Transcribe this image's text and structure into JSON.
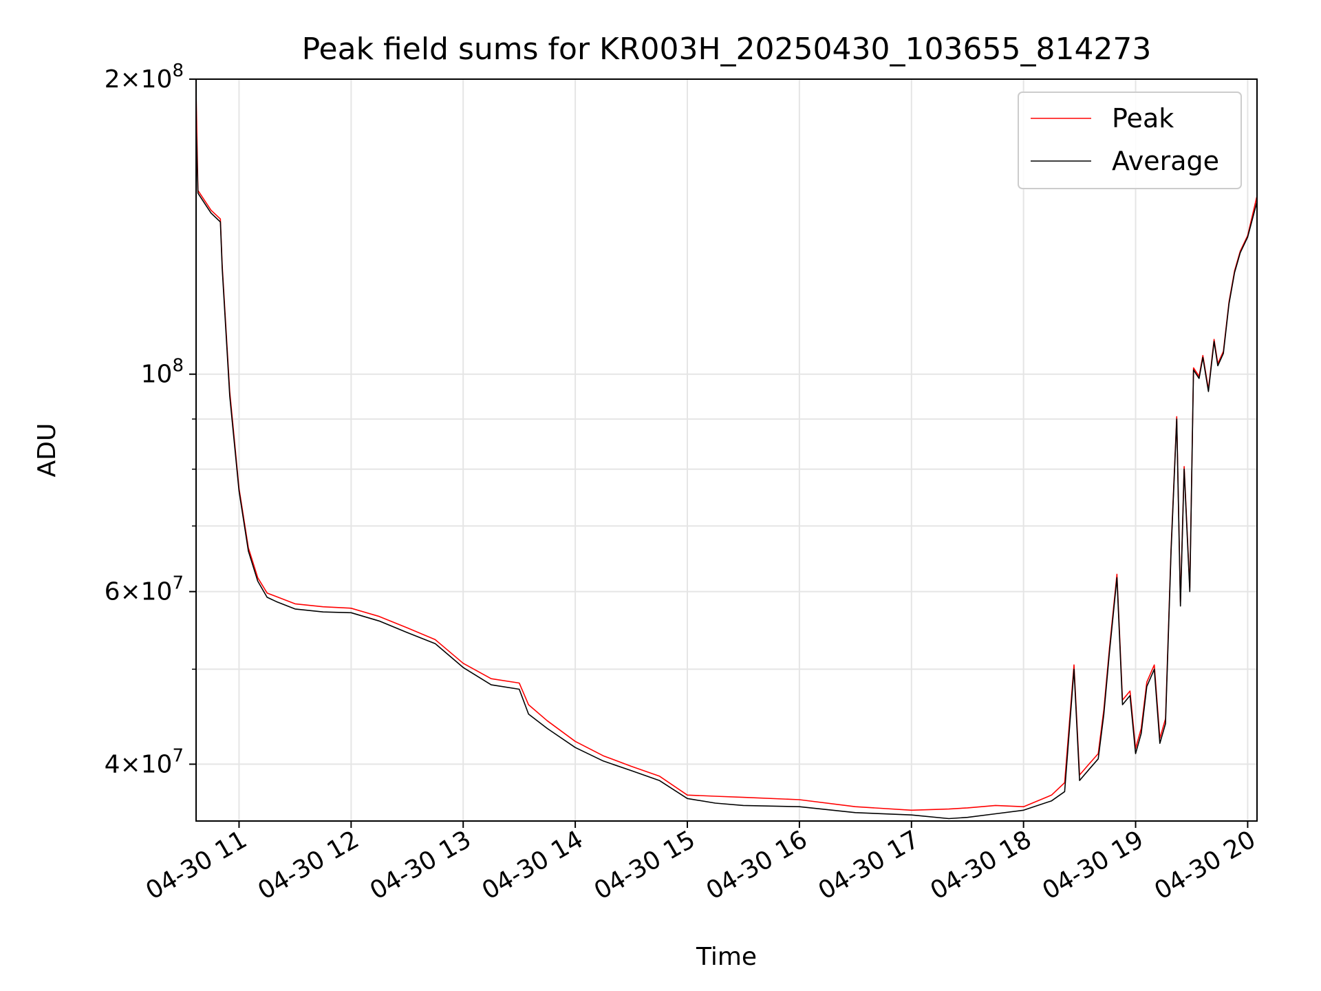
{
  "chart_data": {
    "type": "line",
    "title": "Peak field sums for KR003H_20250430_103655_814273",
    "xlabel": "Time",
    "ylabel": "ADU",
    "yscale": "log",
    "ylim": [
      35000000,
      200000000
    ],
    "xlim": [
      "2025-04-30T10:37",
      "2025-04-30T20:05"
    ],
    "grid": true,
    "legend_position": "upper right",
    "x_ticks": [
      {
        "t": "2025-04-30T11:00",
        "label": "04-30 11"
      },
      {
        "t": "2025-04-30T12:00",
        "label": "04-30 12"
      },
      {
        "t": "2025-04-30T13:00",
        "label": "04-30 13"
      },
      {
        "t": "2025-04-30T14:00",
        "label": "04-30 14"
      },
      {
        "t": "2025-04-30T15:00",
        "label": "04-30 15"
      },
      {
        "t": "2025-04-30T16:00",
        "label": "04-30 16"
      },
      {
        "t": "2025-04-30T17:00",
        "label": "04-30 17"
      },
      {
        "t": "2025-04-30T18:00",
        "label": "04-30 18"
      },
      {
        "t": "2025-04-30T19:00",
        "label": "04-30 19"
      },
      {
        "t": "2025-04-30T20:00",
        "label": "04-30 20"
      }
    ],
    "y_ticks": [
      {
        "v": 200000000,
        "mant": "2",
        "exp": "8"
      },
      {
        "v": 100000000,
        "mant": "",
        "exp": "8"
      },
      {
        "v": 60000000,
        "mant": "6",
        "exp": "7"
      },
      {
        "v": 40000000,
        "mant": "4",
        "exp": "7"
      }
    ],
    "y_minor_ticks": [
      50000000,
      70000000,
      80000000,
      90000000
    ],
    "series": [
      {
        "name": "Average",
        "color": "#000000",
        "x": [
          "2025-04-30T10:37",
          "2025-04-30T10:38",
          "2025-04-30T10:45",
          "2025-04-30T10:50",
          "2025-04-30T10:51",
          "2025-04-30T10:55",
          "2025-04-30T11:00",
          "2025-04-30T11:05",
          "2025-04-30T11:10",
          "2025-04-30T11:15",
          "2025-04-30T11:20",
          "2025-04-30T11:30",
          "2025-04-30T11:45",
          "2025-04-30T12:00",
          "2025-04-30T12:15",
          "2025-04-30T12:30",
          "2025-04-30T12:45",
          "2025-04-30T13:00",
          "2025-04-30T13:15",
          "2025-04-30T13:30",
          "2025-04-30T13:35",
          "2025-04-30T13:45",
          "2025-04-30T14:00",
          "2025-04-30T14:15",
          "2025-04-30T14:30",
          "2025-04-30T14:45",
          "2025-04-30T15:00",
          "2025-04-30T15:15",
          "2025-04-30T15:30",
          "2025-04-30T16:00",
          "2025-04-30T16:30",
          "2025-04-30T17:00",
          "2025-04-30T17:20",
          "2025-04-30T17:30",
          "2025-04-30T17:45",
          "2025-04-30T18:00",
          "2025-04-30T18:15",
          "2025-04-30T18:22",
          "2025-04-30T18:27",
          "2025-04-30T18:30",
          "2025-04-30T18:35",
          "2025-04-30T18:40",
          "2025-04-30T18:43",
          "2025-04-30T18:46",
          "2025-04-30T18:50",
          "2025-04-30T18:53",
          "2025-04-30T18:57",
          "2025-04-30T19:00",
          "2025-04-30T19:03",
          "2025-04-30T19:06",
          "2025-04-30T19:10",
          "2025-04-30T19:13",
          "2025-04-30T19:16",
          "2025-04-30T19:19",
          "2025-04-30T19:22",
          "2025-04-30T19:24",
          "2025-04-30T19:26",
          "2025-04-30T19:29",
          "2025-04-30T19:31",
          "2025-04-30T19:34",
          "2025-04-30T19:36",
          "2025-04-30T19:39",
          "2025-04-30T19:42",
          "2025-04-30T19:44",
          "2025-04-30T19:47",
          "2025-04-30T19:50",
          "2025-04-30T19:53",
          "2025-04-30T19:56",
          "2025-04-30T20:00",
          "2025-04-30T20:05"
        ],
        "values": [
          180000000,
          153000000,
          146000000,
          143000000,
          128000000,
          95000000,
          76000000,
          66000000,
          61500000,
          59200000,
          58600000,
          57600000,
          57200000,
          57100000,
          56000000,
          54500000,
          53100000,
          50200000,
          48200000,
          47700000,
          45000000,
          43500000,
          41600000,
          40300000,
          39400000,
          38500000,
          36900000,
          36500000,
          36300000,
          36200000,
          35700000,
          35500000,
          35200000,
          35300000,
          35600000,
          35900000,
          36700000,
          37500000,
          50000000,
          38500000,
          39500000,
          40500000,
          45000000,
          52000000,
          62000000,
          46000000,
          47000000,
          41000000,
          43000000,
          48000000,
          50000000,
          42000000,
          44000000,
          66000000,
          90000000,
          58000000,
          80000000,
          60000000,
          101000000,
          99000000,
          104000000,
          96000000,
          108000000,
          102000000,
          105000000,
          118000000,
          127000000,
          133000000,
          138000000,
          150000000
        ]
      },
      {
        "name": "Peak",
        "color": "#ff0000",
        "x": [
          "2025-04-30T10:37",
          "2025-04-30T10:38",
          "2025-04-30T10:45",
          "2025-04-30T10:50",
          "2025-04-30T10:51",
          "2025-04-30T10:55",
          "2025-04-30T11:00",
          "2025-04-30T11:05",
          "2025-04-30T11:10",
          "2025-04-30T11:15",
          "2025-04-30T11:20",
          "2025-04-30T11:30",
          "2025-04-30T11:45",
          "2025-04-30T12:00",
          "2025-04-30T12:15",
          "2025-04-30T12:30",
          "2025-04-30T12:45",
          "2025-04-30T13:00",
          "2025-04-30T13:15",
          "2025-04-30T13:30",
          "2025-04-30T13:35",
          "2025-04-30T13:45",
          "2025-04-30T14:00",
          "2025-04-30T14:15",
          "2025-04-30T14:30",
          "2025-04-30T14:45",
          "2025-04-30T15:00",
          "2025-04-30T15:15",
          "2025-04-30T15:30",
          "2025-04-30T16:00",
          "2025-04-30T16:30",
          "2025-04-30T17:00",
          "2025-04-30T17:20",
          "2025-04-30T17:30",
          "2025-04-30T17:45",
          "2025-04-30T18:00",
          "2025-04-30T18:15",
          "2025-04-30T18:22",
          "2025-04-30T18:27",
          "2025-04-30T18:30",
          "2025-04-30T18:35",
          "2025-04-30T18:40",
          "2025-04-30T18:43",
          "2025-04-30T18:46",
          "2025-04-30T18:50",
          "2025-04-30T18:53",
          "2025-04-30T18:57",
          "2025-04-30T19:00",
          "2025-04-30T19:03",
          "2025-04-30T19:06",
          "2025-04-30T19:10",
          "2025-04-30T19:13",
          "2025-04-30T19:16",
          "2025-04-30T19:19",
          "2025-04-30T19:22",
          "2025-04-30T19:24",
          "2025-04-30T19:26",
          "2025-04-30T19:29",
          "2025-04-30T19:31",
          "2025-04-30T19:34",
          "2025-04-30T19:36",
          "2025-04-30T19:39",
          "2025-04-30T19:42",
          "2025-04-30T19:44",
          "2025-04-30T19:47",
          "2025-04-30T19:50",
          "2025-04-30T19:53",
          "2025-04-30T19:56",
          "2025-04-30T20:00",
          "2025-04-30T20:05"
        ],
        "values": [
          195000000,
          154000000,
          147000000,
          144000000,
          129000000,
          96000000,
          76500000,
          66500000,
          62000000,
          59800000,
          59300000,
          58300000,
          57900000,
          57700000,
          56600000,
          55100000,
          53600000,
          50700000,
          48900000,
          48400000,
          46000000,
          44300000,
          42200000,
          40800000,
          39800000,
          38900000,
          37200000,
          37100000,
          37000000,
          36800000,
          36200000,
          35900000,
          36000000,
          36100000,
          36300000,
          36200000,
          37200000,
          38300000,
          50500000,
          39000000,
          40000000,
          41000000,
          45500000,
          52500000,
          62500000,
          46500000,
          47500000,
          41500000,
          43500000,
          48500000,
          50500000,
          42500000,
          44500000,
          66500000,
          90500000,
          58500000,
          80500000,
          60500000,
          101500000,
          99500000,
          104500000,
          96500000,
          108500000,
          102500000,
          105500000,
          118500000,
          127500000,
          133500000,
          138500000,
          152000000
        ]
      }
    ]
  }
}
